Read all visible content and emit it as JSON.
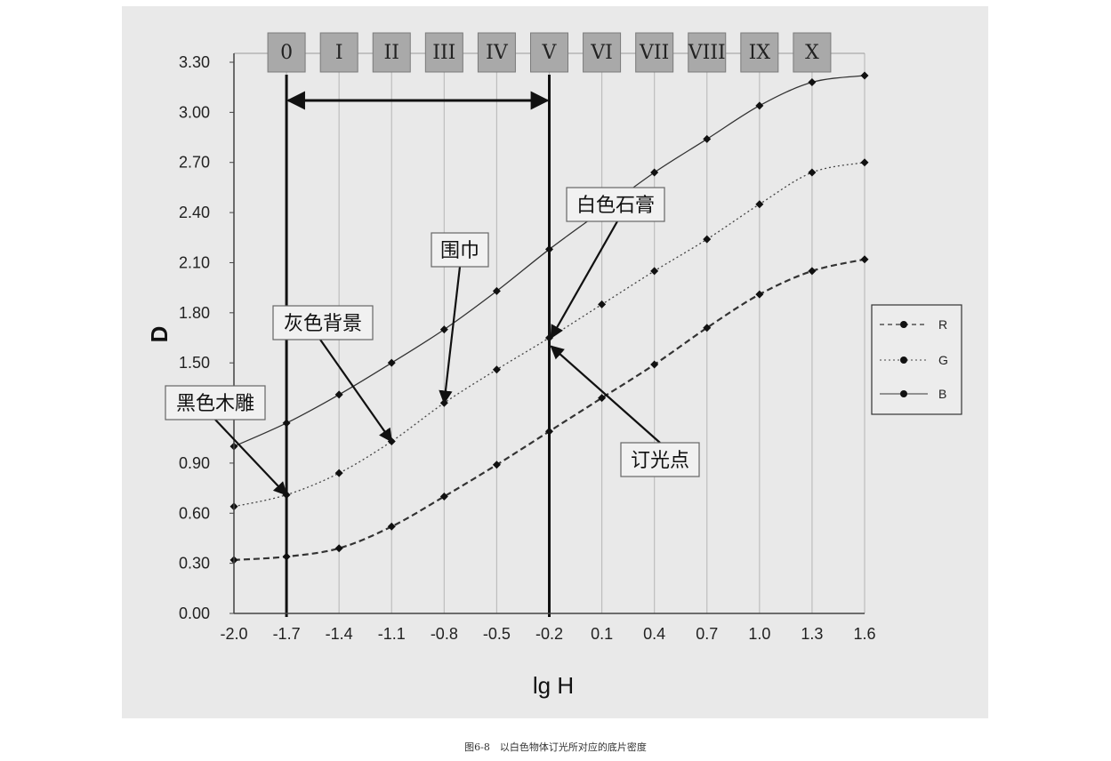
{
  "chart_data": {
    "type": "line",
    "xlabel": "lg H",
    "ylabel": "D",
    "x_ticks": [
      "-2.0",
      "-1.7",
      "-1.4",
      "-1.1",
      "-0.8",
      "-0.5",
      "-0.2",
      "0.1",
      "0.4",
      "0.7",
      "1.0",
      "1.3",
      "1.6"
    ],
    "y_ticks": [
      "0.00",
      "0.30",
      "0.60",
      "0.90",
      "1.50",
      "1.80",
      "2.10",
      "2.40",
      "2.70",
      "3.00",
      "3.30"
    ],
    "xlim": [
      -2.0,
      1.6
    ],
    "ylim": [
      0.0,
      3.3
    ],
    "grid": true,
    "legend_position": "right",
    "zones": [
      {
        "label": "0",
        "x": -1.7
      },
      {
        "label": "I",
        "x": -1.4
      },
      {
        "label": "II",
        "x": -1.1
      },
      {
        "label": "III",
        "x": -0.8
      },
      {
        "label": "IV",
        "x": -0.5
      },
      {
        "label": "V",
        "x": -0.2
      },
      {
        "label": "VI",
        "x": 0.1
      },
      {
        "label": "VII",
        "x": 0.4
      },
      {
        "label": "VIII",
        "x": 0.7
      },
      {
        "label": "IX",
        "x": 1.0
      },
      {
        "label": "X",
        "x": 1.3
      }
    ],
    "x": [
      -2.0,
      -1.7,
      -1.4,
      -1.1,
      -0.8,
      -0.5,
      -0.2,
      0.1,
      0.4,
      0.7,
      1.0,
      1.3,
      1.6
    ],
    "series": [
      {
        "name": "R",
        "style": "dashed",
        "values": [
          0.32,
          0.34,
          0.39,
          0.52,
          0.7,
          0.89,
          1.09,
          1.29,
          1.49,
          1.71,
          1.91,
          2.05,
          2.12
        ]
      },
      {
        "name": "G",
        "style": "dotted",
        "values": [
          0.64,
          0.71,
          0.84,
          1.03,
          1.26,
          1.46,
          1.65,
          1.85,
          2.05,
          2.24,
          2.45,
          2.64,
          2.7
        ]
      },
      {
        "name": "B",
        "style": "solid",
        "values": [
          1.0,
          1.14,
          1.31,
          1.5,
          1.7,
          1.93,
          2.18,
          2.41,
          2.64,
          2.84,
          3.04,
          3.18,
          3.22
        ]
      }
    ],
    "marker_lines": [
      -1.7,
      -0.2
    ],
    "range_arrow": {
      "from": -1.7,
      "to": -0.2
    },
    "annotations": [
      {
        "text": "黑色木雕"
      },
      {
        "text": "灰色背景"
      },
      {
        "text": "围巾"
      },
      {
        "text": "白色石膏"
      },
      {
        "text": "订光点"
      }
    ]
  },
  "caption": "图6-8　以白色物体订光所对应的底片密度"
}
